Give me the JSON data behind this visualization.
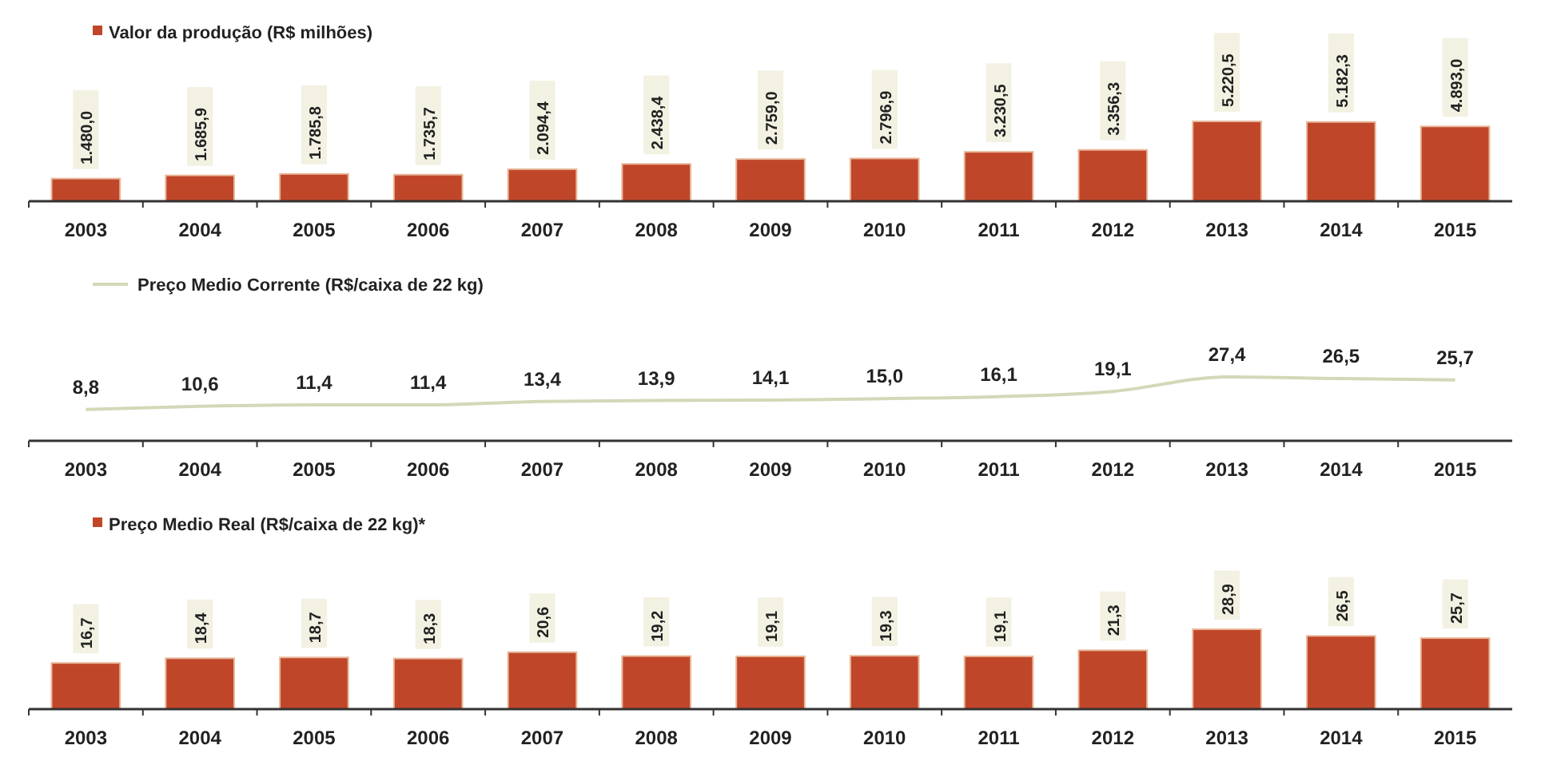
{
  "chart_data": [
    {
      "type": "bar",
      "categories": [
        "2003",
        "2004",
        "2005",
        "2006",
        "2007",
        "2008",
        "2009",
        "2010",
        "2011",
        "2012",
        "2013",
        "2014",
        "2015"
      ],
      "series": [
        {
          "name": "Valor da produção (R$ milhões)",
          "color": "#c0462a",
          "values": [
            1480.0,
            1685.9,
            1785.8,
            1735.7,
            2094.4,
            2438.4,
            2759.0,
            2796.9,
            3230.5,
            3356.3,
            5220.5,
            5182.3,
            4893.0
          ],
          "value_labels": [
            "1.480,0",
            "1.685,9",
            "1.785,8",
            "1.735,7",
            "2.094,4",
            "2.438,4",
            "2.759,0",
            "2.796,9",
            "3.230,5",
            "3.356,3",
            "5.220,5",
            "5.182,3",
            "4.893,0"
          ]
        }
      ],
      "legend": "top left"
    },
    {
      "type": "line",
      "categories": [
        "2003",
        "2004",
        "2005",
        "2006",
        "2007",
        "2008",
        "2009",
        "2010",
        "2011",
        "2012",
        "2013",
        "2014",
        "2015"
      ],
      "series": [
        {
          "name": "Preço Medio Corrente (R$/caixa de 22 kg)",
          "color": "#d3d8b8",
          "values": [
            8.8,
            10.6,
            11.4,
            11.4,
            13.4,
            13.9,
            14.1,
            15.0,
            16.1,
            19.1,
            27.4,
            26.5,
            25.7
          ],
          "value_labels": [
            "8,8",
            "10,6",
            "11,4",
            "11,4",
            "13,4",
            "13,9",
            "14,1",
            "15,0",
            "16,1",
            "19,1",
            "27,4",
            "26,5",
            "25,7"
          ]
        }
      ],
      "legend": "top left"
    },
    {
      "type": "bar",
      "categories": [
        "2003",
        "2004",
        "2005",
        "2006",
        "2007",
        "2008",
        "2009",
        "2010",
        "2011",
        "2012",
        "2013",
        "2014",
        "2015"
      ],
      "series": [
        {
          "name": "Preço Medio Real (R$/caixa de 22 kg)*",
          "color": "#c0462a",
          "values": [
            16.7,
            18.4,
            18.7,
            18.3,
            20.6,
            19.2,
            19.1,
            19.3,
            19.1,
            21.3,
            28.9,
            26.5,
            25.7
          ],
          "value_labels": [
            "16,7",
            "18,4",
            "18,7",
            "18,3",
            "20,6",
            "19,2",
            "19,1",
            "19,3",
            "19,1",
            "21,3",
            "28,9",
            "26,5",
            "25,7"
          ]
        }
      ],
      "legend": "top left"
    }
  ]
}
